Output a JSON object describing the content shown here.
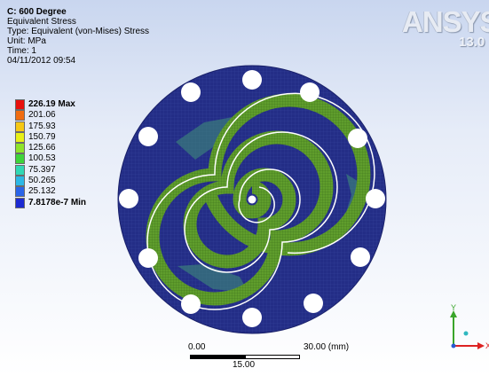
{
  "header": {
    "title": "C: 600 Degree",
    "line1": "Equivalent Stress",
    "line2": "Type: Equivalent (von-Mises) Stress",
    "line3": "Unit: MPa",
    "line4": "Time: 1",
    "line5": "04/11/2012 09:54"
  },
  "logo": {
    "word": "ANSYS",
    "version": "13.0"
  },
  "legend": {
    "items": [
      {
        "label": "226.19 Max",
        "color": "#e8100c",
        "bold": true
      },
      {
        "label": "201.06",
        "color": "#f06c10",
        "bold": false
      },
      {
        "label": "175.93",
        "color": "#f5c815",
        "bold": false
      },
      {
        "label": "150.79",
        "color": "#e8f016",
        "bold": false
      },
      {
        "label": "125.66",
        "color": "#8ee42a",
        "bold": false
      },
      {
        "label": "100.53",
        "color": "#3ed43a",
        "bold": false
      },
      {
        "label": "75.397",
        "color": "#30d8b4",
        "bold": false
      },
      {
        "label": "50.265",
        "color": "#2cb8e6",
        "bold": false
      },
      {
        "label": "25.132",
        "color": "#2a64e8",
        "bold": false
      },
      {
        "label": "7.8178e-7 Min",
        "color": "#1c2ad2",
        "bold": true
      }
    ]
  },
  "scale_bar": {
    "start": "0.00",
    "end": "30.00 (mm)",
    "mid": "15.00"
  },
  "triad": {
    "y_axis": "Y",
    "x_axis": "X"
  },
  "colors": {
    "disk": "#232d86",
    "spiral": "#5a9a26",
    "hole": "#ffffff"
  }
}
